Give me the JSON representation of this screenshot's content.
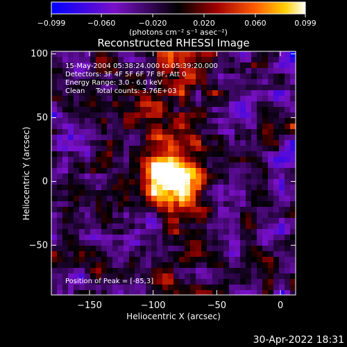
{
  "chart_data": {
    "type": "heatmap",
    "title": "Reconstructed RHESSI Image",
    "xlabel": "Heliocentric X (arcsec)",
    "ylabel": "Heliocentric Y (arcsec)",
    "xlim": [
      -180,
      12
    ],
    "ylim": [
      -89,
      102
    ],
    "x_ticks": [
      -150,
      -100,
      -50,
      0
    ],
    "y_ticks": [
      -50,
      0,
      50,
      100
    ],
    "x_tick_labels": [
      "−150",
      "−100",
      "−50",
      "0"
    ],
    "y_tick_labels": [
      "−50",
      "0",
      "50",
      "100"
    ],
    "colorbar": {
      "range": [
        -0.099,
        0.099
      ],
      "ticks": [
        -0.099,
        -0.06,
        -0.02,
        0.02,
        0.06,
        0.099
      ],
      "tick_labels": [
        "−0.099",
        "−0.060",
        "−0.020",
        "0.020",
        "0.060",
        "0.099"
      ],
      "unit_label": "(photons cm⁻² s⁻¹ asec⁻²)"
    },
    "annotations": [
      "15-May-2004 05:38:24.000 to 05:39:20.000",
      "Detectors: 3F 4F 5F 6F 7F 8F, Att 0",
      "Energy Range: 3.0 - 6.0 keV",
      "Clean     Total counts: 3.76E+03"
    ],
    "peak_label": "Position of Peak = [-85,3]",
    "peak_position": [
      -85,
      3
    ],
    "peak_value": 0.099,
    "min_value": -0.099,
    "grid": false
  },
  "footer": {
    "timestamp": "30-Apr-2022 18:31"
  },
  "colors": {
    "background": "#000000",
    "text": "#ffffff"
  }
}
